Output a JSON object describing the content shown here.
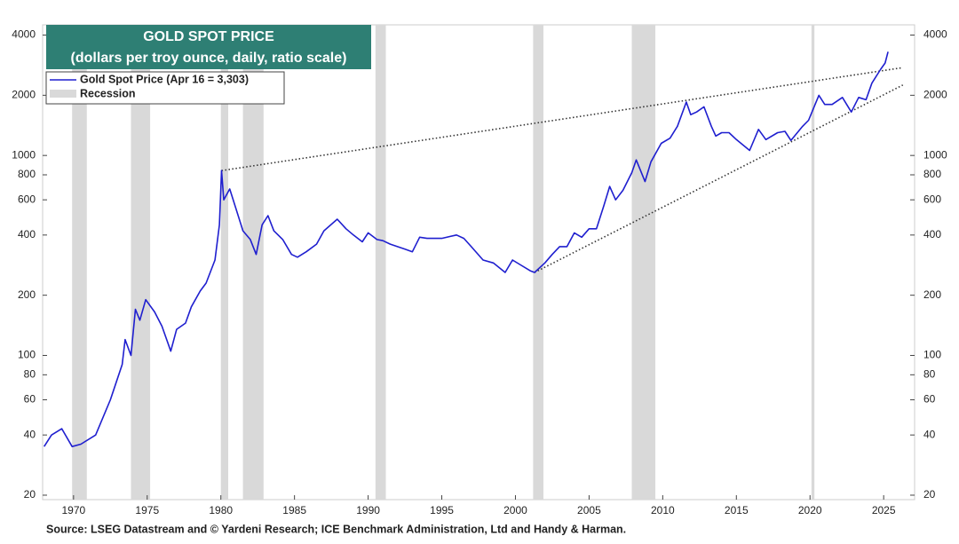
{
  "chart_data": {
    "type": "line",
    "title": "GOLD SPOT PRICE",
    "subtitle": "(dollars per troy ounce, daily, ratio scale)",
    "source": "Source: LSEG Datastream and © Yardeni Research; ICE Benchmark Administration, Ltd and Handy & Harman.",
    "log_scale": true,
    "xlim": [
      1967.9,
      2027.1
    ],
    "xticks": [
      1970,
      1975,
      1980,
      1985,
      1990,
      1995,
      2000,
      2005,
      2010,
      2015,
      2020,
      2025
    ],
    "ylim": [
      19,
      4500
    ],
    "yticks": [
      20,
      40,
      60,
      80,
      100,
      200,
      400,
      600,
      800,
      1000,
      2000,
      4000
    ],
    "y2lim": [
      19,
      4500
    ],
    "y2ticks": [
      20,
      40,
      60,
      80,
      100,
      200,
      400,
      600,
      800,
      1000,
      2000,
      4000
    ],
    "recession_label": "Recession",
    "recession_color": "#d9d9d9",
    "recessions": [
      [
        1969.9,
        1970.9
      ],
      [
        1973.9,
        1975.2
      ],
      [
        1980.0,
        1980.5
      ],
      [
        1981.5,
        1982.9
      ],
      [
        1990.5,
        1991.2
      ],
      [
        2001.2,
        2001.9
      ],
      [
        2007.9,
        2009.5
      ],
      [
        2020.1,
        2020.3
      ]
    ],
    "series": [
      {
        "name": "Gold Spot Price (Apr 16 = 3,303)",
        "color": "#1f1fcf",
        "x": [
          1968.0,
          1968.5,
          1969.2,
          1969.9,
          1970.5,
          1971.5,
          1972.5,
          1973.3,
          1973.5,
          1973.9,
          1974.2,
          1974.5,
          1974.9,
          1975.5,
          1976.0,
          1976.6,
          1977.0,
          1977.6,
          1978.0,
          1978.6,
          1979.0,
          1979.6,
          1979.9,
          1980.05,
          1980.2,
          1980.6,
          1981.0,
          1981.5,
          1982.0,
          1982.4,
          1982.8,
          1983.2,
          1983.6,
          1984.2,
          1984.8,
          1985.2,
          1985.8,
          1986.5,
          1987.0,
          1987.9,
          1988.5,
          1989.0,
          1989.6,
          1990.0,
          1990.6,
          1991.0,
          1991.5,
          1992.5,
          1993.0,
          1993.5,
          1994.0,
          1995.0,
          1996.0,
          1996.5,
          1997.0,
          1997.8,
          1998.5,
          1999.3,
          1999.8,
          2000.3,
          2001.0,
          2001.3,
          2002.0,
          2002.5,
          2003.0,
          2003.5,
          2004.0,
          2004.5,
          2005.0,
          2005.5,
          2006.0,
          2006.4,
          2006.8,
          2007.3,
          2007.9,
          2008.2,
          2008.8,
          2009.2,
          2009.9,
          2010.5,
          2011.0,
          2011.6,
          2011.9,
          2012.3,
          2012.8,
          2013.3,
          2013.6,
          2014.0,
          2014.5,
          2015.0,
          2015.9,
          2016.5,
          2017.0,
          2017.8,
          2018.3,
          2018.7,
          2019.5,
          2019.9,
          2020.6,
          2021.0,
          2021.5,
          2022.2,
          2022.8,
          2023.3,
          2023.8,
          2024.2,
          2024.8,
          2025.1,
          2025.3
        ],
        "values": [
          35,
          40,
          43,
          35,
          36,
          40,
          60,
          90,
          120,
          100,
          170,
          150,
          190,
          165,
          140,
          105,
          135,
          145,
          175,
          210,
          230,
          300,
          450,
          840,
          600,
          680,
          550,
          420,
          380,
          320,
          450,
          500,
          420,
          380,
          320,
          310,
          330,
          360,
          420,
          480,
          430,
          400,
          370,
          410,
          380,
          375,
          360,
          340,
          330,
          390,
          385,
          385,
          400,
          385,
          350,
          300,
          290,
          260,
          300,
          285,
          265,
          260,
          290,
          320,
          350,
          350,
          410,
          390,
          430,
          430,
          560,
          700,
          600,
          670,
          820,
          950,
          740,
          930,
          1150,
          1220,
          1400,
          1850,
          1600,
          1650,
          1750,
          1400,
          1250,
          1300,
          1300,
          1200,
          1060,
          1350,
          1200,
          1300,
          1320,
          1190,
          1400,
          1500,
          2000,
          1800,
          1800,
          1950,
          1650,
          1950,
          1900,
          2300,
          2700,
          2900,
          3303
        ]
      }
    ],
    "trendlines": [
      {
        "x": [
          1980.05,
          2026.3
        ],
        "values": [
          840,
          2750
        ]
      },
      {
        "x": [
          2001.3,
          2026.3
        ],
        "values": [
          260,
          2250
        ]
      }
    ]
  }
}
